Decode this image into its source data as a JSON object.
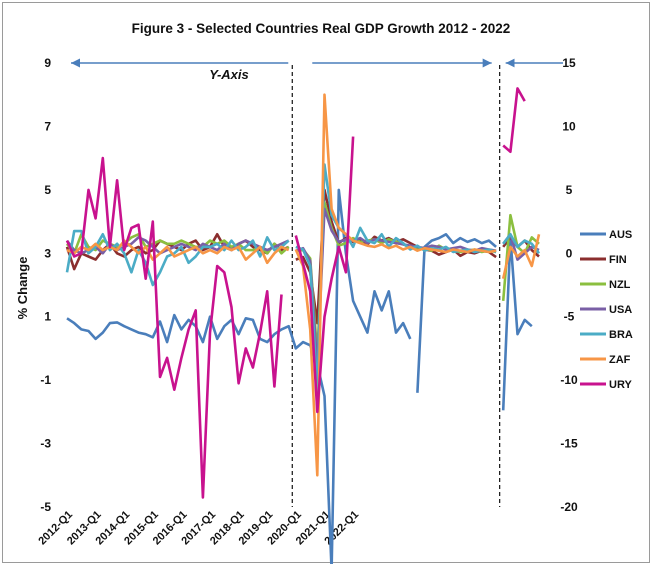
{
  "chart_data": {
    "type": "line",
    "title": "Figure 3 - Selected Countries Real GDP Growth 2012 - 2022",
    "ylabel": "% Change",
    "annotation": "Y-Axis",
    "left_axis": {
      "ylim": [
        -5,
        9
      ],
      "ticks": [
        "9",
        "7",
        "5",
        "3",
        "1",
        "-1",
        "-3",
        "-5"
      ]
    },
    "right_axis": {
      "ylim": [
        -20,
        15
      ],
      "ticks": [
        "15",
        "10",
        "5",
        "0",
        "-5",
        "-10",
        "-15",
        "-20"
      ]
    },
    "x_tick_labels": [
      "2012-Q1",
      "2013-Q1",
      "2014-Q1",
      "2015-Q1",
      "2016-Q1",
      "2017-Q1",
      "2018-Q1",
      "2019-Q1",
      "2020-Q1",
      "2021-Q1",
      "2022-Q1"
    ],
    "grid": false,
    "legend_position": "right",
    "series": [
      {
        "name": "AUS",
        "color": "#4a7ebb",
        "axis": [
          "left",
          "left",
          "left",
          "left",
          "left",
          "left",
          "left",
          "left",
          "left",
          "left",
          "left",
          "left",
          "left",
          "left",
          "left",
          "left",
          "left",
          "left",
          "left",
          "left",
          "left",
          "left",
          "left",
          "left",
          "left",
          "left",
          "left",
          "left",
          "left",
          "left",
          "left",
          "left",
          "left",
          "left",
          "left",
          "left",
          "left",
          "left",
          "left",
          "left",
          "left",
          "left",
          "left",
          "left",
          "left",
          "left",
          "left",
          "left",
          "left",
          "right",
          "right",
          "right",
          "right",
          "right",
          "right",
          "right",
          "right",
          "right",
          "right",
          "right",
          "right",
          "left",
          "left",
          "left",
          "left",
          "left",
          "left"
        ],
        "values": [
          0.95,
          0.8,
          0.6,
          0.55,
          0.3,
          0.5,
          0.8,
          0.82,
          0.7,
          0.6,
          0.5,
          0.45,
          0.35,
          0.85,
          0.2,
          1.05,
          0.6,
          0.9,
          0.7,
          0.2,
          1.0,
          0.3,
          0.7,
          0.9,
          0.45,
          0.95,
          0.9,
          0.3,
          0.2,
          0.45,
          0.6,
          0.7,
          0,
          0.2,
          0.1,
          -0.5,
          -1.5,
          -7,
          5,
          3,
          1.5,
          1,
          0.5,
          1.8,
          1.2,
          1.8,
          0.5,
          0.8,
          0.3,
          -11,
          0.5,
          1,
          1.2,
          1.5,
          0.8,
          1.2,
          0.9,
          1.1,
          0.8,
          1.0,
          0.5,
          -1.95,
          3.5,
          0.45,
          0.9,
          0.7,
          null
        ]
      },
      {
        "name": "FIN",
        "color": "#8b2e2e",
        "axis": [
          "left",
          "left",
          "left",
          "left",
          "left",
          "left",
          "left",
          "left",
          "left",
          "left",
          "left",
          "left",
          "left",
          "left",
          "left",
          "left",
          "left",
          "left",
          "left",
          "left",
          "left",
          "left",
          "left",
          "left",
          "left",
          "left",
          "left",
          "left",
          "left",
          "left",
          "left",
          "left",
          "right",
          "right",
          "right",
          "right",
          "right",
          "right",
          "right",
          "right",
          "right",
          "right",
          "right",
          "right",
          "right",
          "right",
          "right",
          "right",
          "right",
          "right",
          "right",
          "right",
          "right",
          "right",
          "right",
          "right",
          "right",
          "right",
          "right",
          "right",
          "right",
          "left",
          "left",
          "left",
          "left",
          "left",
          "left"
        ],
        "values": [
          3.2,
          2.5,
          3.0,
          2.9,
          2.8,
          3.1,
          3.3,
          3.0,
          2.9,
          3.1,
          3.2,
          3.0,
          3.1,
          3.4,
          3.3,
          3.2,
          3.1,
          3.3,
          3.4,
          3.1,
          3.2,
          3.6,
          3.2,
          3.1,
          3.3,
          3.4,
          3.2,
          3.1,
          3.0,
          3.3,
          3.1,
          3.2,
          -0.5,
          -0.3,
          -1.5,
          -5.5,
          5,
          2.5,
          0.8,
          1.2,
          0.9,
          1.1,
          0.7,
          1.3,
          1.0,
          1.2,
          0.9,
          1.1,
          0.8,
          0.5,
          0.3,
          0.2,
          -0.1,
          0.1,
          0.3,
          -0.2,
          0.1,
          0.0,
          0.2,
          0.1,
          -0.3,
          3.2,
          3.5,
          3.2,
          3.4,
          3.1,
          2.9
        ]
      },
      {
        "name": "NZL",
        "color": "#8bbf3f",
        "axis": [
          "left",
          "left",
          "left",
          "left",
          "left",
          "left",
          "left",
          "left",
          "left",
          "left",
          "left",
          "left",
          "left",
          "left",
          "left",
          "left",
          "left",
          "left",
          "left",
          "left",
          "left",
          "left",
          "left",
          "left",
          "left",
          "left",
          "left",
          "left",
          "left",
          "left",
          "left",
          "left",
          "right",
          "right",
          "right",
          "right",
          "right",
          "right",
          "right",
          "right",
          "right",
          "right",
          "right",
          "right",
          "right",
          "right",
          "right",
          "right",
          "right",
          "right",
          "right",
          "right",
          "right",
          "right",
          "right",
          "right",
          "right",
          "right",
          "right",
          "right",
          "right",
          "left",
          "left",
          "left",
          "left",
          "left",
          "left"
        ],
        "values": [
          3.3,
          3.0,
          3.6,
          3.2,
          3.1,
          3.4,
          3.3,
          3.2,
          3.3,
          3.5,
          3.6,
          3.2,
          3.3,
          3.4,
          3.3,
          3.3,
          3.4,
          3.3,
          3.2,
          3.2,
          3.4,
          3.3,
          3.4,
          3.2,
          3.3,
          3.1,
          3.1,
          3.2,
          3.0,
          3.3,
          3.0,
          3.2,
          0.1,
          0.3,
          -0.4,
          -8,
          4,
          2,
          0.6,
          0.8,
          1.2,
          0.9,
          1.0,
          1.1,
          0.8,
          1.1,
          0.9,
          0.7,
          0.5,
          0.3,
          0.4,
          0.2,
          0.6,
          0.3,
          0.2,
          0.1,
          0.2,
          0.3,
          0.1,
          0.2,
          0.1,
          1.5,
          4.2,
          3.2,
          3.0,
          3.5,
          3.3
        ]
      },
      {
        "name": "USA",
        "color": "#7a5fa6",
        "axis": [
          "left",
          "left",
          "left",
          "left",
          "left",
          "left",
          "left",
          "left",
          "left",
          "left",
          "left",
          "left",
          "left",
          "left",
          "left",
          "left",
          "left",
          "left",
          "left",
          "left",
          "left",
          "left",
          "left",
          "left",
          "left",
          "left",
          "left",
          "left",
          "left",
          "left",
          "left",
          "left",
          "right",
          "right",
          "right",
          "right",
          "right",
          "right",
          "right",
          "right",
          "right",
          "right",
          "right",
          "right",
          "right",
          "right",
          "right",
          "right",
          "right",
          "right",
          "right",
          "right",
          "right",
          "right",
          "right",
          "right",
          "right",
          "right",
          "right",
          "right",
          "right",
          "left",
          "left",
          "left",
          "left",
          "left",
          "left"
        ],
        "values": [
          3.4,
          3.1,
          3.0,
          3.1,
          3.2,
          3.0,
          3.3,
          3.1,
          3.2,
          3.3,
          3.5,
          3.4,
          3.2,
          3.0,
          3.1,
          3.2,
          3.3,
          3.2,
          3.1,
          3.3,
          3.2,
          3.1,
          3.3,
          3.1,
          3.3,
          3.4,
          3.3,
          3.2,
          3.1,
          3.2,
          3.3,
          3.4,
          0.2,
          0.4,
          -0.6,
          -9,
          3.5,
          1.8,
          0.9,
          1.1,
          1.0,
          1.2,
          0.8,
          1.1,
          1.0,
          0.9,
          0.8,
          0.7,
          0.6,
          0.5,
          0.4,
          0.6,
          0.5,
          0.3,
          0.4,
          0.5,
          0.3,
          0.2,
          0.4,
          0.3,
          0.2,
          3.3,
          3.6,
          2.8,
          3.0,
          3.2,
          3.1
        ]
      },
      {
        "name": "BRA",
        "color": "#4bacc6",
        "axis": [
          "left",
          "left",
          "left",
          "left",
          "left",
          "left",
          "left",
          "left",
          "left",
          "left",
          "left",
          "left",
          "left",
          "left",
          "left",
          "left",
          "left",
          "left",
          "left",
          "left",
          "left",
          "left",
          "left",
          "left",
          "left",
          "left",
          "left",
          "left",
          "left",
          "left",
          "left",
          "left",
          "right",
          "right",
          "right",
          "right",
          "right",
          "right",
          "right",
          "right",
          "right",
          "right",
          "right",
          "right",
          "right",
          "right",
          "right",
          "right",
          "right",
          "right",
          "right",
          "right",
          "right",
          "right",
          "right",
          "right",
          "right",
          "right",
          "right",
          "right",
          "right",
          "left",
          "left",
          "left",
          "left",
          "left",
          "left"
        ],
        "values": [
          2.4,
          3.7,
          3.7,
          3.0,
          3.2,
          3.6,
          3.1,
          3.3,
          3.0,
          2.4,
          3.1,
          2.7,
          2.0,
          2.4,
          2.9,
          3.0,
          3.2,
          2.7,
          2.9,
          3.2,
          3.2,
          3.3,
          3.1,
          3.4,
          3.1,
          3.2,
          3.4,
          2.9,
          3.5,
          3.1,
          3.2,
          3.4,
          0.5,
          0.3,
          -1.0,
          -11,
          7,
          3,
          2,
          1.5,
          0.5,
          2.0,
          1.0,
          0.8,
          1.5,
          0.5,
          1.2,
          0.8,
          0.3,
          0.6,
          0.2,
          0.4,
          0.3,
          0.5,
          0.1,
          0.2,
          0.3,
          0.1,
          0.2,
          0.3,
          0.1,
          3.3,
          3.6,
          3.2,
          3.4,
          3.3,
          3.0
        ]
      },
      {
        "name": "ZAF",
        "color": "#f79646",
        "axis": [
          "left",
          "left",
          "left",
          "left",
          "left",
          "left",
          "left",
          "left",
          "left",
          "left",
          "left",
          "left",
          "left",
          "left",
          "left",
          "left",
          "left",
          "left",
          "left",
          "left",
          "left",
          "left",
          "left",
          "left",
          "left",
          "left",
          "left",
          "left",
          "left",
          "left",
          "left",
          "left",
          "right",
          "right",
          "right",
          "right",
          "right",
          "right",
          "right",
          "right",
          "right",
          "right",
          "right",
          "right",
          "right",
          "right",
          "right",
          "right",
          "right",
          "right",
          "right",
          "right",
          "right",
          "right",
          "right",
          "right",
          "right",
          "right",
          "right",
          "right",
          "right",
          "left",
          "left",
          "left",
          "left",
          "left",
          "left"
        ],
        "values": [
          3.1,
          3.0,
          3.2,
          3.1,
          3.3,
          3.1,
          3.2,
          3.1,
          3.4,
          3.2,
          3.0,
          3.2,
          2.8,
          3.0,
          3.2,
          2.9,
          3.0,
          3.1,
          3.2,
          3.0,
          3.1,
          3.0,
          3.2,
          3.1,
          3.2,
          2.8,
          3.0,
          3.2,
          2.7,
          3.0,
          3.2,
          3.1,
          0.3,
          -1.0,
          -6,
          -17.5,
          12.5,
          3.5,
          2.0,
          1.5,
          1.0,
          0.8,
          0.6,
          0.5,
          0.7,
          0.4,
          0.6,
          0.3,
          0.5,
          0.2,
          0.4,
          0.3,
          0.2,
          0.1,
          0.3,
          0.2,
          0.1,
          0.3,
          0.2,
          0.1,
          0.2,
          2.2,
          3.2,
          2.9,
          3.1,
          2.6,
          3.6
        ]
      },
      {
        "name": "URY",
        "color": "#c8128e",
        "axis": [
          "left",
          "left",
          "left",
          "left",
          "left",
          "left",
          "left",
          "left",
          "left",
          "left",
          "left",
          "left",
          "left",
          "left",
          "left",
          "left",
          "left",
          "left",
          "left",
          "left",
          "left",
          "left",
          "left",
          "left",
          "left",
          "left",
          "left",
          "left",
          "left",
          "left",
          "left",
          "left",
          "right",
          "right",
          "right",
          "right",
          "right",
          "right",
          "right",
          "right",
          "right",
          "right",
          "right",
          "right",
          "right",
          "right",
          "right",
          "right",
          "right",
          "right",
          "right",
          "right",
          "right",
          "right",
          "right",
          "right",
          "right",
          "right",
          "right",
          "right",
          "right",
          "left",
          "left",
          "left",
          "left",
          "left",
          "left"
        ],
        "values": [
          3.4,
          2.9,
          3.0,
          5.0,
          4.1,
          6.0,
          3.2,
          5.3,
          3.1,
          3.8,
          3.9,
          2.2,
          4.0,
          -0.9,
          -0.3,
          -1.3,
          -0.3,
          0.6,
          1.2,
          -4.7,
          0.5,
          2.6,
          2.4,
          1.3,
          -1.1,
          0.0,
          -0.6,
          0.5,
          1.8,
          -1.2,
          1.7,
          null,
          1.4,
          -0.8,
          -3,
          -12.5,
          -5,
          -2,
          0.5,
          -1.5,
          9.2,
          null,
          null,
          null,
          null,
          null,
          null,
          null,
          null,
          null,
          null,
          null,
          null,
          null,
          null,
          null,
          null,
          null,
          null,
          null,
          null,
          6.4,
          6.2,
          8.2,
          7.8,
          null,
          null
        ]
      }
    ]
  }
}
